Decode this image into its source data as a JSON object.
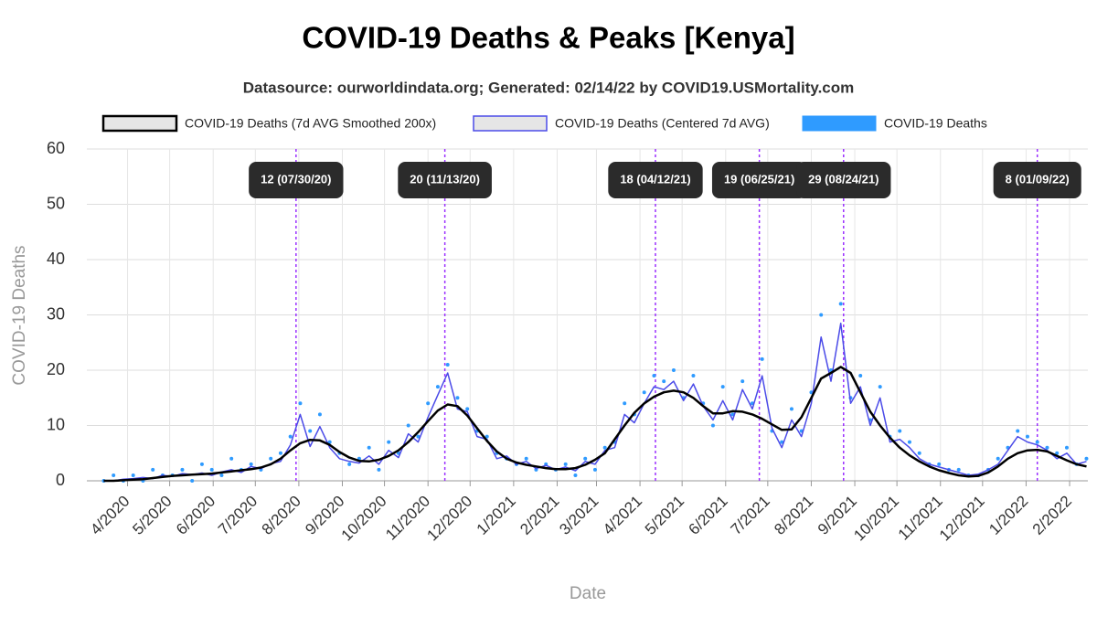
{
  "chart_data": {
    "type": "line",
    "title": "COVID-19 Deaths & Peaks [Kenya]",
    "subtitle": "Datasource: ourworldindata.org; Generated: 02/14/22 by COVID19.USMortality.com",
    "y_label": "COVID-19 Deaths",
    "x_label": "Date",
    "ylim": [
      0,
      60
    ],
    "yticks": [
      0,
      10,
      20,
      30,
      40,
      50,
      60
    ],
    "xlim": [
      "2020-03-03",
      "2022-02-14"
    ],
    "xticks": [
      {
        "value": "2020-04-01",
        "label": "4/2020"
      },
      {
        "value": "2020-05-01",
        "label": "5/2020"
      },
      {
        "value": "2020-06-01",
        "label": "6/2020"
      },
      {
        "value": "2020-07-01",
        "label": "7/2020"
      },
      {
        "value": "2020-08-01",
        "label": "8/2020"
      },
      {
        "value": "2020-09-01",
        "label": "9/2020"
      },
      {
        "value": "2020-10-01",
        "label": "10/2020"
      },
      {
        "value": "2020-11-01",
        "label": "11/2020"
      },
      {
        "value": "2020-12-01",
        "label": "12/2020"
      },
      {
        "value": "2021-01-01",
        "label": "1/2021"
      },
      {
        "value": "2021-02-01",
        "label": "2/2021"
      },
      {
        "value": "2021-03-01",
        "label": "3/2021"
      },
      {
        "value": "2021-04-01",
        "label": "4/2021"
      },
      {
        "value": "2021-05-01",
        "label": "5/2021"
      },
      {
        "value": "2021-06-01",
        "label": "6/2021"
      },
      {
        "value": "2021-07-01",
        "label": "7/2021"
      },
      {
        "value": "2021-08-01",
        "label": "8/2021"
      },
      {
        "value": "2021-09-01",
        "label": "9/2021"
      },
      {
        "value": "2021-10-01",
        "label": "10/2021"
      },
      {
        "value": "2021-11-01",
        "label": "11/2021"
      },
      {
        "value": "2021-12-01",
        "label": "12/2021"
      },
      {
        "value": "2022-01-01",
        "label": "1/2022"
      },
      {
        "value": "2022-02-01",
        "label": "2/2022"
      }
    ],
    "grid": true,
    "x": [
      "2020-03-15",
      "2020-03-22",
      "2020-03-29",
      "2020-04-05",
      "2020-04-12",
      "2020-04-19",
      "2020-04-26",
      "2020-05-03",
      "2020-05-10",
      "2020-05-17",
      "2020-05-24",
      "2020-05-31",
      "2020-06-07",
      "2020-06-14",
      "2020-06-21",
      "2020-06-28",
      "2020-07-05",
      "2020-07-12",
      "2020-07-19",
      "2020-07-26",
      "2020-08-02",
      "2020-08-09",
      "2020-08-16",
      "2020-08-23",
      "2020-08-30",
      "2020-09-06",
      "2020-09-13",
      "2020-09-20",
      "2020-09-27",
      "2020-10-04",
      "2020-10-11",
      "2020-10-18",
      "2020-10-25",
      "2020-11-01",
      "2020-11-08",
      "2020-11-15",
      "2020-11-22",
      "2020-11-29",
      "2020-12-06",
      "2020-12-13",
      "2020-12-20",
      "2020-12-27",
      "2021-01-03",
      "2021-01-10",
      "2021-01-17",
      "2021-01-24",
      "2021-01-31",
      "2021-02-07",
      "2021-02-14",
      "2021-02-21",
      "2021-02-28",
      "2021-03-07",
      "2021-03-14",
      "2021-03-21",
      "2021-03-28",
      "2021-04-04",
      "2021-04-11",
      "2021-04-18",
      "2021-04-25",
      "2021-05-02",
      "2021-05-09",
      "2021-05-16",
      "2021-05-23",
      "2021-05-30",
      "2021-06-06",
      "2021-06-13",
      "2021-06-20",
      "2021-06-27",
      "2021-07-04",
      "2021-07-11",
      "2021-07-18",
      "2021-07-25",
      "2021-08-01",
      "2021-08-08",
      "2021-08-15",
      "2021-08-22",
      "2021-08-29",
      "2021-09-05",
      "2021-09-12",
      "2021-09-19",
      "2021-09-26",
      "2021-10-03",
      "2021-10-10",
      "2021-10-17",
      "2021-10-24",
      "2021-10-31",
      "2021-11-07",
      "2021-11-14",
      "2021-11-21",
      "2021-11-28",
      "2021-12-05",
      "2021-12-12",
      "2021-12-19",
      "2021-12-26",
      "2022-01-02",
      "2022-01-09",
      "2022-01-16",
      "2022-01-23",
      "2022-01-30",
      "2022-02-06",
      "2022-02-13"
    ],
    "series": [
      {
        "name": "COVID-19 Deaths (7d AVG Smoothed 200x)",
        "style": "line",
        "color": "#000000",
        "width": 2.5,
        "values": [
          0,
          0,
          0.1,
          0.2,
          0.3,
          0.5,
          0.7,
          0.9,
          1.0,
          1.1,
          1.2,
          1.3,
          1.5,
          1.7,
          1.9,
          2.1,
          2.4,
          3.0,
          4.0,
          5.5,
          6.8,
          7.4,
          7.3,
          6.5,
          5.2,
          4.2,
          3.6,
          3.5,
          3.8,
          4.5,
          5.5,
          7.0,
          8.8,
          10.8,
          12.7,
          13.8,
          13.5,
          11.8,
          9.5,
          7.2,
          5.3,
          4.0,
          3.3,
          2.9,
          2.6,
          2.3,
          2.1,
          2.1,
          2.3,
          2.9,
          3.8,
          5.0,
          7.5,
          10.0,
          12.3,
          14.0,
          15.2,
          16.0,
          16.3,
          16.0,
          15.0,
          13.5,
          12.2,
          12.2,
          12.6,
          12.5,
          12.0,
          11.2,
          10.2,
          9.2,
          9.3,
          11.5,
          15.0,
          18.5,
          19.5,
          20.6,
          19.5,
          16.0,
          12.5,
          10.0,
          7.8,
          6.0,
          4.6,
          3.5,
          2.6,
          1.9,
          1.4,
          1.0,
          0.8,
          0.9,
          1.5,
          2.6,
          4.0,
          5.0,
          5.5,
          5.6,
          5.3,
          4.5,
          3.7,
          3.0,
          2.6
        ]
      },
      {
        "name": "COVID-19 Deaths (Centered 7d AVG)",
        "style": "line",
        "color": "#4b4be8",
        "width": 1.5,
        "values": [
          0,
          0,
          0.3,
          0.4,
          0.6,
          0.4,
          1.0,
          0.8,
          1.3,
          1.1,
          1.4,
          1.0,
          1.6,
          2.0,
          1.5,
          2.6,
          2.2,
          3.1,
          3.5,
          6.5,
          12.0,
          6.2,
          9.8,
          6.0,
          4.0,
          3.5,
          3.2,
          4.5,
          3.0,
          5.5,
          4.2,
          8.5,
          7.0,
          11.5,
          15.5,
          19.5,
          13.0,
          12.5,
          8.0,
          7.5,
          4.0,
          4.5,
          3.0,
          3.5,
          2.2,
          2.8,
          2.0,
          2.5,
          1.8,
          3.5,
          3.0,
          5.5,
          6.0,
          12.0,
          10.5,
          14.0,
          17.0,
          16.5,
          18.0,
          14.5,
          17.5,
          13.5,
          11.0,
          14.5,
          11.0,
          16.5,
          13.0,
          19.0,
          9.5,
          6.0,
          11.0,
          8.0,
          14.0,
          26.0,
          18.0,
          28.5,
          14.0,
          17.0,
          10.0,
          15.0,
          7.0,
          7.5,
          6.0,
          4.0,
          3.0,
          2.5,
          2.0,
          1.5,
          1.0,
          1.2,
          2.0,
          3.0,
          5.5,
          8.0,
          7.0,
          6.5,
          5.5,
          4.0,
          5.0,
          3.0,
          3.5
        ]
      },
      {
        "name": "COVID-19 Deaths",
        "style": "scatter",
        "color": "#2f9bff",
        "values": [
          0,
          1,
          0,
          1,
          0,
          2,
          1,
          1,
          2,
          0,
          3,
          2,
          1,
          4,
          2,
          3,
          2,
          4,
          5,
          8,
          14,
          9,
          12,
          7,
          5,
          3,
          4,
          6,
          2,
          7,
          5,
          10,
          8,
          14,
          17,
          21,
          15,
          13,
          9,
          8,
          5,
          4,
          3,
          4,
          2,
          3,
          2,
          3,
          1,
          4,
          2,
          6,
          7,
          14,
          12,
          16,
          19,
          18,
          20,
          15,
          19,
          14,
          10,
          17,
          12,
          18,
          14,
          22,
          9,
          7,
          13,
          9,
          16,
          30,
          20,
          32,
          15,
          19,
          11,
          17,
          8,
          9,
          7,
          5,
          3,
          3,
          2,
          2,
          1,
          1,
          2,
          4,
          6,
          9,
          8,
          7,
          6,
          5,
          6,
          3,
          4
        ]
      }
    ],
    "peaks": [
      {
        "date": "2020-07-30",
        "label": "12 (07/30/20)"
      },
      {
        "date": "2020-11-13",
        "label": "20 (11/13/20)"
      },
      {
        "date": "2021-04-12",
        "label": "18 (04/12/21)"
      },
      {
        "date": "2021-06-25",
        "label": "19 (06/25/21)"
      },
      {
        "date": "2021-08-24",
        "label": "29 (08/24/21)"
      },
      {
        "date": "2022-01-09",
        "label": "8 (01/09/22)"
      }
    ]
  }
}
